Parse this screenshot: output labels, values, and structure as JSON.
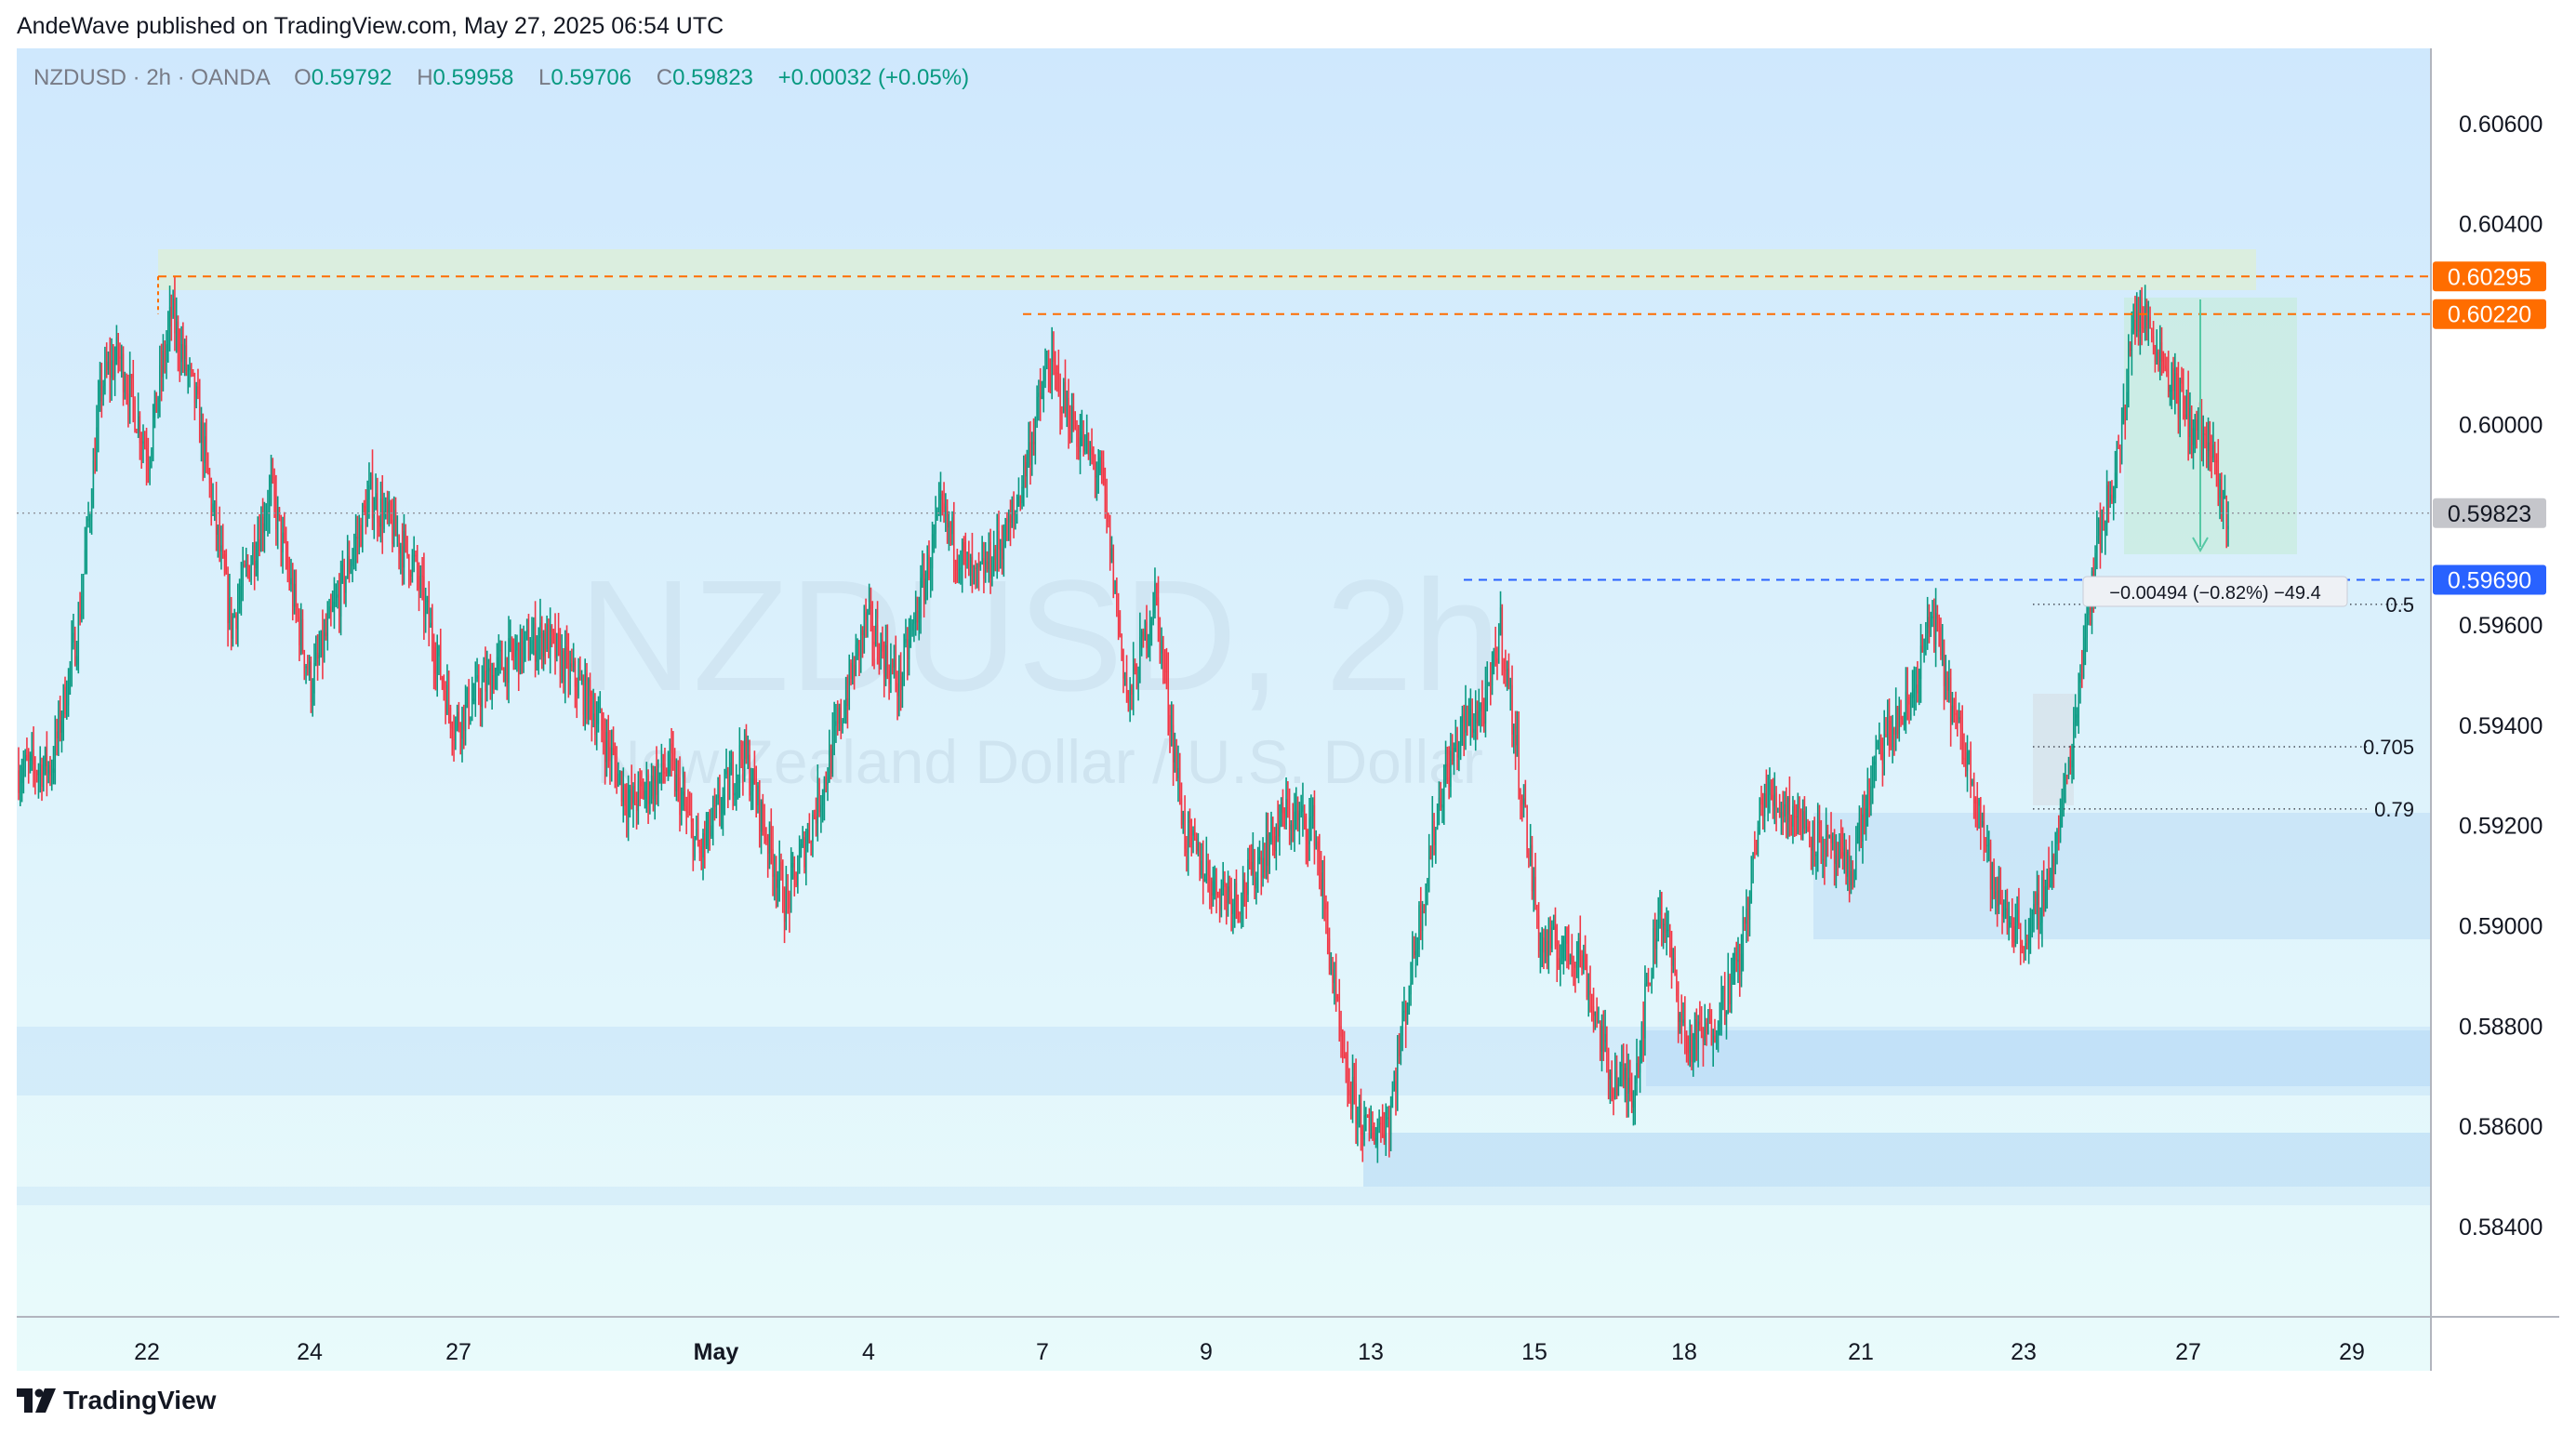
{
  "header": {
    "published": "AndeWave published on TradingView.com, May 27, 2025 06:54 UTC"
  },
  "legend": {
    "symbol": "NZDUSD · 2h · OANDA",
    "open_label": "O",
    "open": "0.59792",
    "high_label": "H",
    "high": "0.59958",
    "low_label": "L",
    "low": "0.59706",
    "close_label": "C",
    "close": "0.59823",
    "change": "+0.00032 (+0.05%)"
  },
  "watermark": {
    "title": "NZDUSD, 2h",
    "subtitle": "New Zealand Dollar / U.S. Dollar"
  },
  "footer": {
    "brand": "TradingView"
  },
  "colors": {
    "up": "#089981",
    "down": "#f23645",
    "resistance": "#ff6d00",
    "support": "#2962ff",
    "last_price_bg": "#9598a1"
  },
  "chart_data": {
    "type": "candlestick",
    "title": "NZDUSD, 2h",
    "subtitle": "New Zealand Dollar / U.S. Dollar",
    "y_ticks": [
      "0.60600",
      "0.60400",
      "0.60000",
      "0.59600",
      "0.59400",
      "0.59200",
      "0.59000",
      "0.58800",
      "0.58600",
      "0.58400"
    ],
    "x_ticks": [
      "22",
      "24",
      "27",
      "May",
      "4",
      "7",
      "9",
      "13",
      "15",
      "18",
      "21",
      "23",
      "27",
      "29"
    ],
    "ylim": [
      0.5822,
      0.6075
    ],
    "price_labels": [
      {
        "value": "0.60295",
        "kind": "resistance"
      },
      {
        "value": "0.60220",
        "kind": "resistance"
      },
      {
        "value": "0.59823",
        "kind": "last"
      },
      {
        "value": "0.59690",
        "kind": "support"
      }
    ],
    "fib_levels": [
      {
        "label": "0.5",
        "value": 0.59641
      },
      {
        "label": "0.705",
        "value": 0.59357
      },
      {
        "label": "0.79",
        "value": 0.59233
      }
    ],
    "measure_label": "−0.00494 (−0.82%) −49.4",
    "key_levels": [
      {
        "value": 0.60295,
        "kind": "resistance"
      },
      {
        "value": 0.6022,
        "kind": "resistance"
      },
      {
        "value": 0.5969,
        "kind": "support"
      }
    ],
    "series_path": [
      [
        0,
        0.5931
      ],
      [
        20,
        0.5932
      ],
      [
        36,
        0.596
      ],
      [
        50,
        0.6008
      ],
      [
        60,
        0.6014
      ],
      [
        78,
        0.5994
      ],
      [
        92,
        0.6022
      ],
      [
        107,
        0.6004
      ],
      [
        128,
        0.596
      ],
      [
        152,
        0.5987
      ],
      [
        176,
        0.5948
      ],
      [
        212,
        0.5986
      ],
      [
        238,
        0.5972
      ],
      [
        262,
        0.594
      ],
      [
        290,
        0.5952
      ],
      [
        316,
        0.5958
      ],
      [
        345,
        0.5944
      ],
      [
        368,
        0.5924
      ],
      [
        392,
        0.5932
      ],
      [
        410,
        0.5914
      ],
      [
        436,
        0.5935
      ],
      [
        462,
        0.5904
      ],
      [
        486,
        0.593
      ],
      [
        510,
        0.5961
      ],
      [
        530,
        0.5948
      ],
      [
        555,
        0.5982
      ],
      [
        576,
        0.5968
      ],
      [
        598,
        0.598
      ],
      [
        620,
        0.6012
      ],
      [
        636,
        0.5999
      ],
      [
        652,
        0.5989
      ],
      [
        668,
        0.5944
      ],
      [
        684,
        0.5966
      ],
      [
        702,
        0.5918
      ],
      [
        720,
        0.5908
      ],
      [
        735,
        0.5906
      ],
      [
        762,
        0.5922
      ],
      [
        780,
        0.592
      ],
      [
        798,
        0.587
      ],
      [
        812,
        0.5858
      ],
      [
        825,
        0.5862
      ],
      [
        840,
        0.5895
      ],
      [
        856,
        0.5927
      ],
      [
        870,
        0.594
      ],
      [
        884,
        0.5944
      ],
      [
        892,
        0.596
      ],
      [
        904,
        0.5929
      ],
      [
        916,
        0.5896
      ],
      [
        940,
        0.5895
      ],
      [
        958,
        0.587
      ],
      [
        972,
        0.5868
      ],
      [
        988,
        0.5905
      ],
      [
        1004,
        0.5876
      ],
      [
        1018,
        0.5879
      ],
      [
        1036,
        0.5893
      ],
      [
        1050,
        0.5926
      ],
      [
        1068,
        0.5923
      ],
      [
        1084,
        0.5917
      ],
      [
        1102,
        0.591
      ],
      [
        1120,
        0.5935
      ],
      [
        1138,
        0.5944
      ],
      [
        1152,
        0.5962
      ],
      [
        1166,
        0.594
      ],
      [
        1178,
        0.5928
      ],
      [
        1190,
        0.5905
      ],
      [
        1210,
        0.5897
      ],
      [
        1226,
        0.5915
      ],
      [
        1236,
        0.5936
      ],
      [
        1244,
        0.596
      ],
      [
        1252,
        0.5977
      ],
      [
        1262,
        0.5991
      ],
      [
        1268,
        0.6002
      ],
      [
        1272,
        0.6022
      ],
      [
        1282,
        0.602
      ],
      [
        1296,
        0.6009
      ],
      [
        1306,
        0.6001
      ],
      [
        1318,
        0.5996
      ],
      [
        1326,
        0.5984
      ],
      [
        1330,
        0.5982
      ]
    ]
  }
}
